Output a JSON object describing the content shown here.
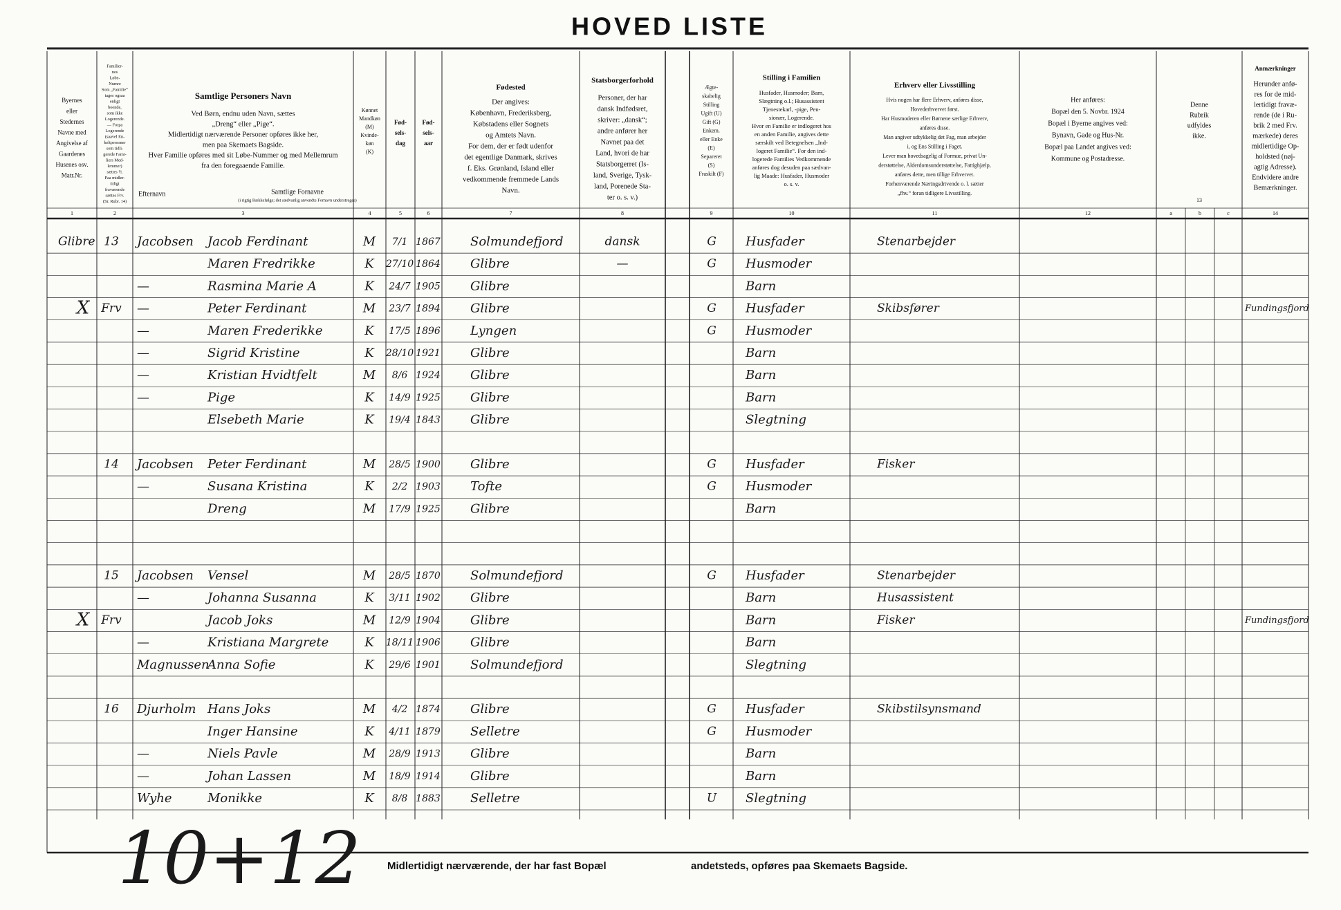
{
  "title": "HOVED LISTE",
  "headers": [
    {
      "lines": [
        "Byernes",
        "eller",
        "Stedernes",
        "Navne med",
        "Angivelse af",
        "Gaardenes",
        "Husenes osv.",
        "Matr.Nr."
      ]
    },
    {
      "lines": [
        "Familier-",
        "nes",
        "Løbe-",
        "Numre",
        "Som „Familie“",
        "tages ogsaa",
        "enligt",
        "boende,",
        "som ikke",
        "Logerende.",
        "— Forpa",
        "Logerende",
        "(saavel En-",
        "keltpersoner",
        "som tidli-",
        "gerede Fami-",
        "liers Med-",
        "lemmer)",
        "sættes ½.",
        "Paa midler-",
        "tidigt",
        "fraværende",
        "sættes Frv.",
        "(Sr. Rubr. 14)"
      ]
    },
    {
      "title": "Samtlige Personers Navn",
      "lines": [
        "Ved Børn, endnu uden Navn, sættes",
        "„Dreng“ eller „Pige“.",
        "Midlertidigt nærværende Personer opføres ikke her,",
        "men paa Skemaets Bagside.",
        "Hver Familie opføres med sit Løbe-Nummer og med Mellemrum",
        "fra den foregaaende Familie."
      ],
      "surname": "Efternavn",
      "given": "Samtlige Fornavne",
      "given_note": "(i rigtig Rækkefølge; det sædvanlig anvendte Fornavn understreges)"
    },
    {
      "lines": [
        "Kønnet",
        "Mandkøn",
        "(M)",
        "Kvinde-",
        "køn",
        "(K)"
      ]
    },
    {
      "lines": [
        "Fød-",
        "sels-",
        "dag"
      ]
    },
    {
      "lines": [
        "Fød-",
        "sels-",
        "aar"
      ]
    },
    {
      "title": "Fødested",
      "lines": [
        "Der angives:",
        "København, Frederiksberg,",
        "Købstadens eller Sognets",
        "og Amtets Navn.",
        "For dem, der er født udenfor",
        "det egentlige Danmark, skrives",
        "f. Eks. Grønland, Island eller",
        "vedkommende fremmede Lands",
        "Navn."
      ]
    },
    {
      "title": "Statsborgerforhold",
      "lines": [
        "Personer, der har",
        "dansk Indfødsret,",
        "skriver: „dansk“;",
        "andre anfører her",
        "Navnet paa det",
        "Land, hvori de har",
        "Statsborgerret (Is-",
        "land, Sverige, Tysk-",
        "land, Porenede Sta-",
        "ter o. s. v.)"
      ]
    },
    {
      "lines": [
        "Ægte-",
        "skabelig",
        "Stilling",
        "Ugift (U)",
        "Gift (G)",
        "Enkem.",
        "eller Enke",
        "(E)",
        "Separeret",
        "(S)",
        "Fraskilt (F)"
      ]
    },
    {
      "title": "Stilling i Familien",
      "lines": [
        "Husfader, Husmoder; Barn,",
        "Slægtning o.l.; Husassistent",
        "Tjenestekarl, -pige, Pen-",
        "sionær, Logerende.",
        "Hvor en Familie er indlogeret hos",
        "en anden Familie, angives dette",
        "særskilt ved Betegnelsen „Ind-",
        "logeret Familie“. For den ind-",
        "logerede Families Vedkommende",
        "anføres dog desuden paa sædvan-",
        "lig Maade: Husfader, Husmoder",
        "o. s. v."
      ]
    },
    {
      "title": "Erhverv eller Livsstilling",
      "lines": [
        "Hvis nogen har flere Erhverv, anføres disse,",
        "Hovederhvervet først.",
        "Har Husmoderen eller Børnene særlige Erhverv,",
        "anføres disse.",
        "Man angiver udtykkelig det Fag, man arbejder",
        "i, og Ens Stilling i Faget.",
        "Lever man hovedsagelig af Formue, privat Un-",
        "derstøttelse, Alderdomsunderstøttelse, Fattighjælp,",
        "anføres dette, men tillige Erhvervet.",
        "Forhenværende Næringsdrivende o. l. sætter",
        "„fhv.“ foran tidligere Livsstilling."
      ]
    },
    {
      "lines": [
        "Her anføres:",
        "Bopæl den 5. Novbr. 1924",
        "Bopæl i Byerne angives ved:",
        "Bynavn, Gade og Hus-Nr.",
        "Bopæl paa Landet angives ved:",
        "Kommune og Postadresse."
      ]
    },
    {
      "lines": [
        "Denne",
        "Rubrik",
        "udfyldes",
        "ikke."
      ]
    },
    {
      "title": "Anmærkninger",
      "lines": [
        "Herunder anfø-",
        "res for de mid-",
        "lertidigt fravæ-",
        "rende (de i Ru-",
        "brik 2 med Frv.",
        "mærkede) deres",
        "midlertidige Op-",
        "holdsted (nøj-",
        "agtig Adresse).",
        "Endvidere andre",
        "Bemærkninger."
      ]
    }
  ],
  "column_numbers": [
    "1",
    "2",
    "3",
    "4",
    "5",
    "6",
    "7",
    "8",
    "9",
    "10",
    "11",
    "12",
    "13",
    "14"
  ],
  "sub_columns": [
    "a",
    "b",
    "c"
  ],
  "rows": [
    {
      "place": "Glibre",
      "family": "13",
      "surname": "Jacobsen",
      "given": "Jacob Ferdinant",
      "sex": "M",
      "day": "7/1",
      "year": "1867",
      "birthplace": "Solmundefjord",
      "citizenship": "dansk",
      "marital": "G",
      "position": "Husfader",
      "occupation": "Stenarbejder"
    },
    {
      "given": "Maren Fredrikke",
      "sex": "K",
      "day": "27/10",
      "year": "1864",
      "birthplace": "Glibre",
      "citizenship": "—",
      "marital": "G",
      "position": "Husmoder"
    },
    {
      "surname": "—",
      "given": "Rasmina Marie A",
      "sex": "K",
      "day": "24/7",
      "year": "1905",
      "birthplace": "Glibre",
      "position": "Barn"
    },
    {
      "cross": "X",
      "family": "Frv",
      "surname": "—",
      "given": "Peter Ferdinant",
      "sex": "M",
      "day": "23/7",
      "year": "1894",
      "birthplace": "Glibre",
      "marital": "G",
      "position": "Husfader",
      "occupation": "Skibsfører",
      "remarks": "Fundingsfjord"
    },
    {
      "surname": "—",
      "given": "Maren Frederikke",
      "sex": "K",
      "day": "17/5",
      "year": "1896",
      "birthplace": "Lyngen",
      "marital": "G",
      "position": "Husmoder"
    },
    {
      "surname": "—",
      "given": "Sigrid Kristine",
      "sex": "K",
      "day": "28/10",
      "year": "1921",
      "birthplace": "Glibre",
      "position": "Barn"
    },
    {
      "surname": "—",
      "given": "Kristian Hvidtfelt",
      "sex": "M",
      "day": "8/6",
      "year": "1924",
      "birthplace": "Glibre",
      "position": "Barn"
    },
    {
      "surname": "—",
      "given": "Pige",
      "sex": "K",
      "day": "14/9",
      "year": "1925",
      "birthplace": "Glibre",
      "position": "Barn"
    },
    {
      "given": "Elsebeth Marie",
      "sex": "K",
      "day": "19/4",
      "year": "1843",
      "birthplace": "Glibre",
      "position": "Slegtning"
    },
    {},
    {
      "family": "14",
      "surname": "Jacobsen",
      "given": "Peter Ferdinant",
      "sex": "M",
      "day": "28/5",
      "year": "1900",
      "birthplace": "Glibre",
      "marital": "G",
      "position": "Husfader",
      "occupation": "Fisker"
    },
    {
      "surname": "—",
      "given": "Susana Kristina",
      "sex": "K",
      "day": "2/2",
      "year": "1903",
      "birthplace": "Tofte",
      "marital": "G",
      "position": "Husmoder"
    },
    {
      "given": "Dreng",
      "sex": "M",
      "day": "17/9",
      "year": "1925",
      "birthplace": "Glibre",
      "position": "Barn"
    },
    {},
    {},
    {
      "family": "15",
      "surname": "Jacobsen",
      "given": "Vensel",
      "sex": "M",
      "day": "28/5",
      "year": "1870",
      "birthplace": "Solmundefjord",
      "marital": "G",
      "position": "Husfader",
      "occupation": "Stenarbejder"
    },
    {
      "surname": "—",
      "given": "Johanna Susanna",
      "sex": "K",
      "day": "3/11",
      "year": "1902",
      "birthplace": "Glibre",
      "position": "Barn",
      "occupation": "Husassistent"
    },
    {
      "cross": "X",
      "family": "Frv",
      "given": "Jacob Joks",
      "sex": "M",
      "day": "12/9",
      "year": "1904",
      "birthplace": "Glibre",
      "position": "Barn",
      "occupation": "Fisker",
      "remarks": "Fundingsfjord"
    },
    {
      "surname": "—",
      "given": "Kristiana Margrete",
      "sex": "K",
      "day": "18/11",
      "year": "1906",
      "birthplace": "Glibre",
      "position": "Barn"
    },
    {
      "surname": "Magnussen",
      "given": "Anna Sofie",
      "sex": "K",
      "day": "29/6",
      "year": "1901",
      "birthplace": "Solmundefjord",
      "position": "Slegtning"
    },
    {},
    {
      "family": "16",
      "surname": "Djurholm",
      "given": "Hans Joks",
      "sex": "M",
      "day": "4/2",
      "year": "1874",
      "birthplace": "Glibre",
      "marital": "G",
      "position": "Husfader",
      "occupation": "Skibstilsynsmand"
    },
    {
      "given": "Inger Hansine",
      "sex": "K",
      "day": "4/11",
      "year": "1879",
      "birthplace": "Selletre",
      "marital": "G",
      "position": "Husmoder"
    },
    {
      "surname": "—",
      "given": "Niels Pavle",
      "sex": "M",
      "day": "28/9",
      "year": "1913",
      "birthplace": "Glibre",
      "position": "Barn"
    },
    {
      "surname": "—",
      "given": "Johan Lassen",
      "sex": "M",
      "day": "18/9",
      "year": "1914",
      "birthplace": "Glibre",
      "position": "Barn"
    },
    {
      "surname": "Wyhe",
      "given": "Monikke",
      "sex": "K",
      "day": "8/8",
      "year": "1883",
      "birthplace": "Selletre",
      "marital": "U",
      "position": "Slegtning"
    }
  ],
  "footer": [
    "Midlertidigt nærværende, der har fast Bopæl",
    "andetsteds, opføres paa Skemaets Bagside."
  ],
  "note": "10+12"
}
